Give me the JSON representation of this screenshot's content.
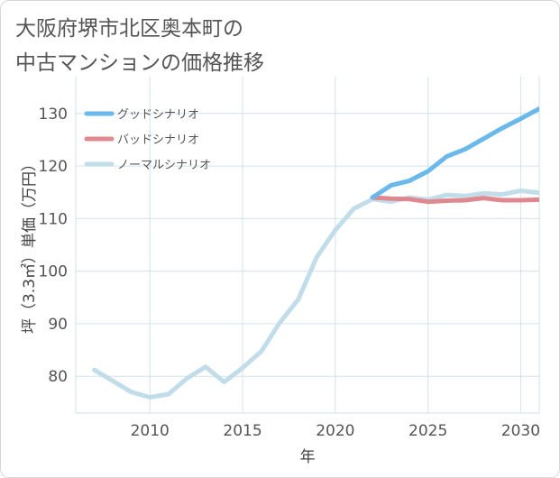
{
  "title_line1": "大阪府堺市北区奥本町の",
  "title_line2": "中古マンションの価格推移",
  "colors": {
    "good": "#6bb8ea",
    "bad": "#e0888f",
    "normal": "#c1dde9",
    "grid": "#d3e2ea",
    "axis_text": "#555555"
  },
  "chart_data": {
    "type": "line",
    "title": "大阪府堺市北区奥本町の中古マンションの価格推移",
    "xlabel": "年",
    "ylabel": "坪（3.3㎡）単価（万円）",
    "xlim": [
      2006,
      2031
    ],
    "ylim": [
      73,
      137
    ],
    "x_ticks": [
      "2010",
      "2015",
      "2020",
      "2025",
      "2030"
    ],
    "y_ticks": [
      "80",
      "90",
      "100",
      "110",
      "120",
      "130"
    ],
    "grid": true,
    "legend_position": "top-left",
    "series": [
      {
        "name": "グッドシナリオ",
        "color": "#6bb8ea",
        "x": [
          2022,
          2023,
          2024,
          2025,
          2026,
          2027,
          2028,
          2029,
          2030,
          2031
        ],
        "y": [
          114.0,
          116.3,
          117.2,
          119.0,
          121.8,
          123.2,
          125.2,
          127.2,
          129.0,
          130.9
        ]
      },
      {
        "name": "バッドシナリオ",
        "color": "#e0888f",
        "x": [
          2022,
          2023,
          2024,
          2025,
          2026,
          2027,
          2028,
          2029,
          2030,
          2031
        ],
        "y": [
          114.0,
          113.8,
          113.7,
          113.2,
          113.4,
          113.5,
          113.9,
          113.5,
          113.5,
          113.6
        ]
      },
      {
        "name": "ノーマルシナリオ",
        "color": "#c1dde9",
        "x": [
          2007,
          2008,
          2009,
          2010,
          2011,
          2012,
          2013,
          2014,
          2015,
          2016,
          2017,
          2018,
          2019,
          2020,
          2021,
          2022,
          2023,
          2024,
          2025,
          2026,
          2027,
          2028,
          2029,
          2030,
          2031
        ],
        "y": [
          81.2,
          79.1,
          77.0,
          76.0,
          76.6,
          79.6,
          81.8,
          78.9,
          81.6,
          84.7,
          90.2,
          94.6,
          102.7,
          107.8,
          111.9,
          113.7,
          113.2,
          114.0,
          113.6,
          114.5,
          114.3,
          114.8,
          114.6,
          115.3,
          114.9
        ]
      }
    ]
  }
}
